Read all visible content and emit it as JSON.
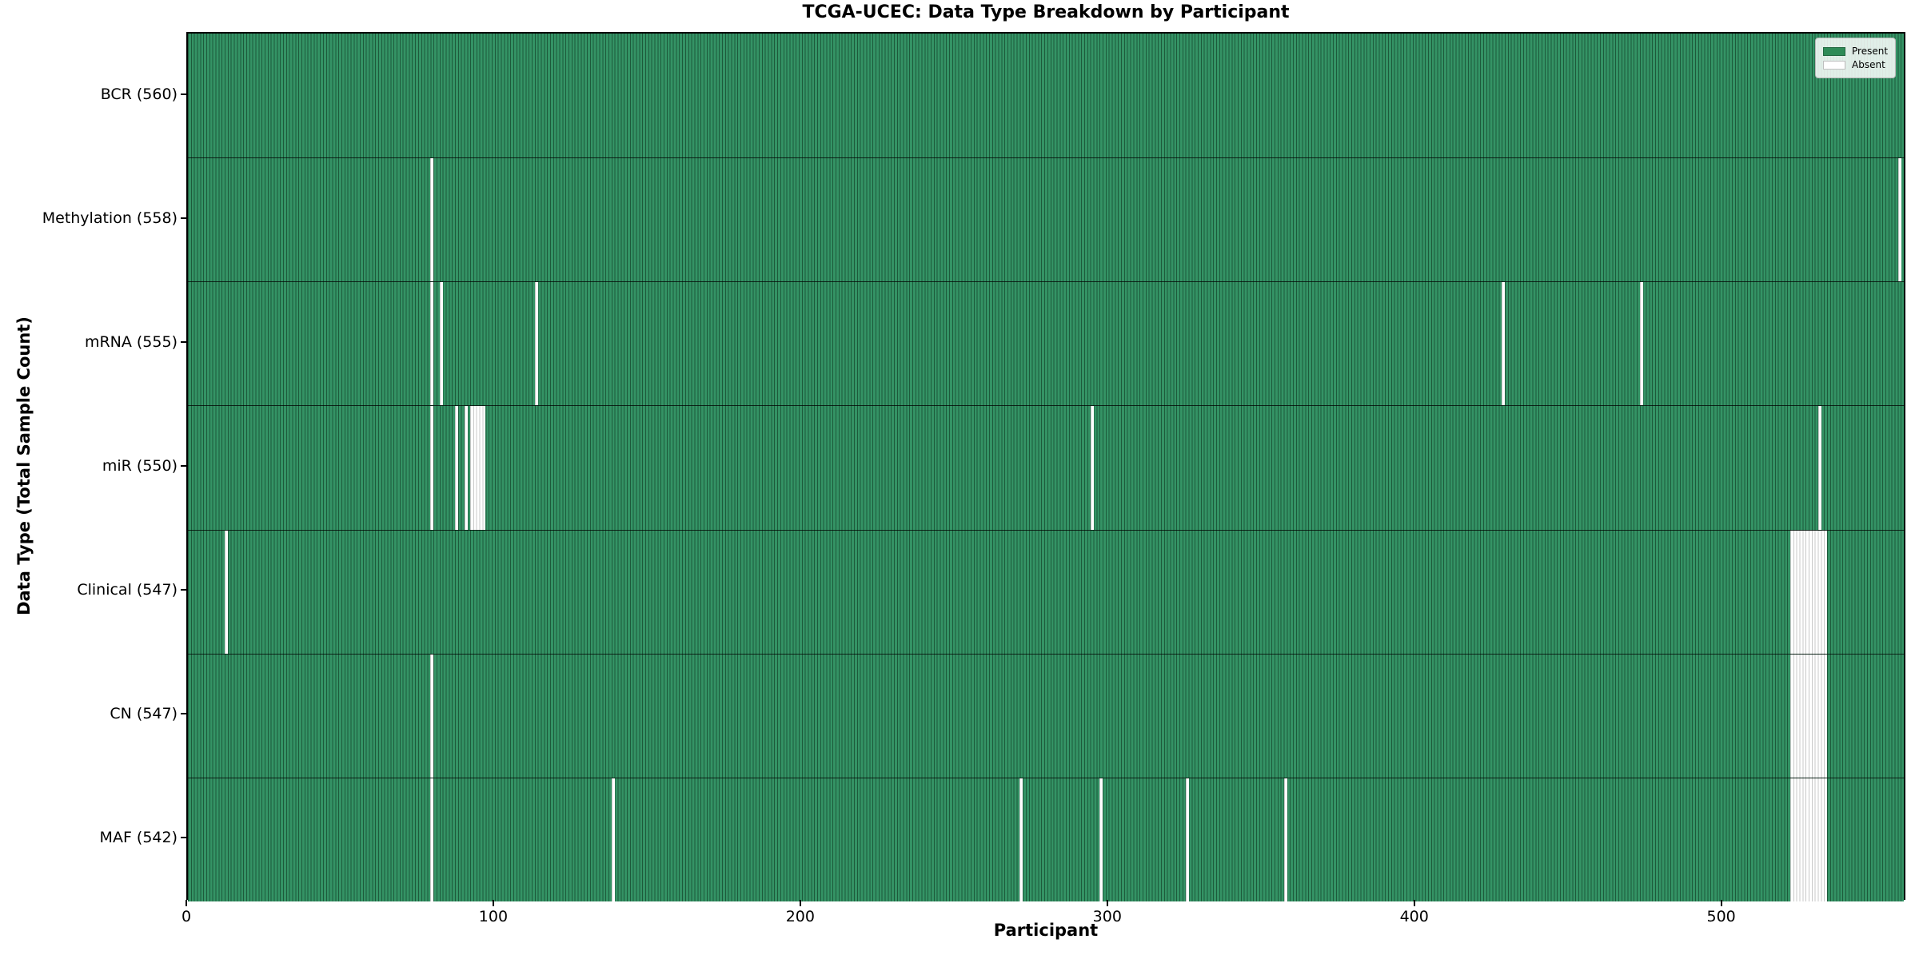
{
  "figure": {
    "title": "TCGA-UCEC: Data Type Breakdown by Participant",
    "xlabel": "Participant",
    "ylabel": "Data Type (Total Sample Count)"
  },
  "legend": {
    "position": "upper right",
    "items": [
      {
        "label": "Present",
        "color": "#2e8b57"
      },
      {
        "label": "Absent",
        "color": "#ffffff"
      }
    ]
  },
  "colors": {
    "present_fill": "#31915f",
    "bar_edge": "#1d5a3b",
    "absent_fill": "#ffffff",
    "absent_edge": "#c8c8c8",
    "axes_edge": "#000000",
    "background": "#ffffff"
  },
  "chart_data": {
    "type": "heatmap",
    "title": "TCGA-UCEC: Data Type Breakdown by Participant",
    "xlabel": "Participant",
    "ylabel": "Data Type (Total Sample Count)",
    "x_ticks": [
      0,
      100,
      200,
      300,
      400,
      500
    ],
    "x_range": [
      0,
      560
    ],
    "total_participants": 560,
    "legend_entries": [
      "Present",
      "Absent"
    ],
    "grid": false,
    "rows": [
      {
        "label": "BCR (560)",
        "data_type": "BCR",
        "present_count": 560,
        "absent_count": 0,
        "absent_participants": []
      },
      {
        "label": "Methylation (558)",
        "data_type": "Methylation",
        "present_count": 558,
        "absent_count": 2,
        "absent_participants": [
          79,
          557
        ]
      },
      {
        "label": "mRNA (555)",
        "data_type": "mRNA",
        "present_count": 555,
        "absent_count": 5,
        "absent_participants": [
          79,
          82,
          113,
          428,
          473
        ]
      },
      {
        "label": "miR (550)",
        "data_type": "miR",
        "present_count": 550,
        "absent_count": 10,
        "absent_participants": [
          79,
          87,
          90,
          92,
          93,
          94,
          95,
          96,
          294,
          531
        ]
      },
      {
        "label": "Clinical (547)",
        "data_type": "Clinical",
        "present_count": 547,
        "absent_count": 13,
        "absent_participants": [
          12,
          522,
          523,
          524,
          525,
          526,
          527,
          528,
          529,
          530,
          531,
          532,
          533
        ]
      },
      {
        "label": "CN (547)",
        "data_type": "CN",
        "present_count": 547,
        "absent_count": 13,
        "absent_participants": [
          79,
          522,
          523,
          524,
          525,
          526,
          527,
          528,
          529,
          530,
          531,
          532,
          533
        ]
      },
      {
        "label": "MAF (542)",
        "data_type": "MAF",
        "present_count": 542,
        "absent_count": 18,
        "absent_participants": [
          79,
          138,
          271,
          297,
          325,
          357,
          522,
          523,
          524,
          525,
          526,
          527,
          528,
          529,
          530,
          531,
          532,
          533
        ]
      }
    ]
  }
}
